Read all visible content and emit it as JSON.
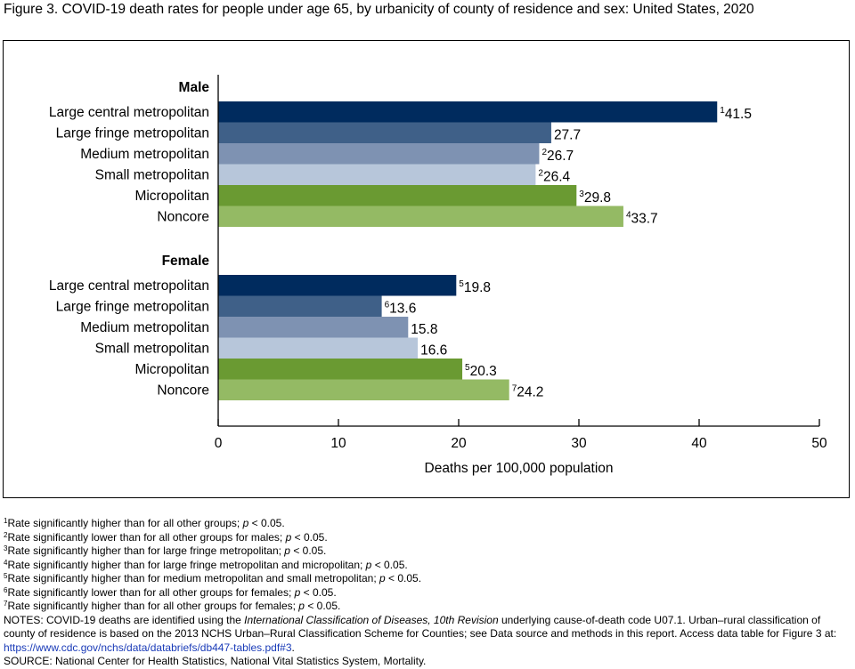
{
  "figure": {
    "title": "Figure 3. COVID-19 death rates for people under age 65, by urbanicity of county of residence and sex: United States, 2020"
  },
  "chart_data": {
    "type": "bar",
    "orientation": "horizontal",
    "xlabel": "Deaths per 100,000 population",
    "xlim": [
      0,
      50
    ],
    "xticks": [
      "0",
      "10",
      "20",
      "30",
      "40",
      "50"
    ],
    "grid": false,
    "colors": {
      "Large central metropolitan": "#002b5e",
      "Large fringe metropolitan": "#3f6088",
      "Medium metropolitan": "#7e92b2",
      "Small metropolitan": "#b7c6da",
      "Micropolitan": "#6a9a32",
      "Noncore": "#94ba64"
    },
    "groups": [
      {
        "name": "Male",
        "bars": [
          {
            "category": "Large central metropolitan",
            "value": 41.5,
            "label": "41.5",
            "note": "1"
          },
          {
            "category": "Large fringe metropolitan",
            "value": 27.7,
            "label": "27.7",
            "note": ""
          },
          {
            "category": "Medium metropolitan",
            "value": 26.7,
            "label": "26.7",
            "note": "2"
          },
          {
            "category": "Small metropolitan",
            "value": 26.4,
            "label": "26.4",
            "note": "2"
          },
          {
            "category": "Micropolitan",
            "value": 29.8,
            "label": "29.8",
            "note": "3"
          },
          {
            "category": "Noncore",
            "value": 33.7,
            "label": "33.7",
            "note": "4"
          }
        ]
      },
      {
        "name": "Female",
        "bars": [
          {
            "category": "Large central metropolitan",
            "value": 19.8,
            "label": "19.8",
            "note": "5"
          },
          {
            "category": "Large fringe metropolitan",
            "value": 13.6,
            "label": "13.6",
            "note": "6"
          },
          {
            "category": "Medium metropolitan",
            "value": 15.8,
            "label": "15.8",
            "note": ""
          },
          {
            "category": "Small metropolitan",
            "value": 16.6,
            "label": "16.6",
            "note": ""
          },
          {
            "category": "Micropolitan",
            "value": 20.3,
            "label": "20.3",
            "note": "5"
          },
          {
            "category": "Noncore",
            "value": 24.2,
            "label": "24.2",
            "note": "7"
          }
        ]
      }
    ]
  },
  "footnotes": [
    {
      "mark": "1",
      "before": "Rate significantly higher than for all other groups; ",
      "p": "p",
      "after": " < 0.05."
    },
    {
      "mark": "2",
      "before": "Rate significantly lower than for all other groups for males; ",
      "p": "p",
      "after": " < 0.05."
    },
    {
      "mark": "3",
      "before": "Rate significantly higher than for large fringe metropolitan; ",
      "p": "p",
      "after": " < 0.05."
    },
    {
      "mark": "4",
      "before": "Rate significantly higher than for large fringe metropolitan and micropolitan; ",
      "p": "p",
      "after": " < 0.05."
    },
    {
      "mark": "5",
      "before": "Rate significantly higher than for medium metropolitan and small metropolitan; ",
      "p": "p",
      "after": " < 0.05."
    },
    {
      "mark": "6",
      "before": "Rate significantly lower than for all other groups for females; ",
      "p": "p",
      "after": " < 0.05."
    },
    {
      "mark": "7",
      "before": "Rate significantly higher than for all other groups for females; ",
      "p": "p",
      "after": " < 0.05."
    }
  ],
  "notes": {
    "part1": "NOTES: COVID-19 deaths are identified using the ",
    "italic": "International Classification of Diseases, 10th Revision",
    "part2": " underlying cause-of-death code U07.1. Urban–rural classification of county of residence is based on the 2013 NCHS Urban–Rural Classification Scheme for Counties; see Data source and methods in this report. Access data table for Figure 3 at: ",
    "link": "https://www.cdc.gov/nchs/data/databriefs/db447-tables.pdf#3",
    "part3": "."
  },
  "source": "SOURCE: National Center for Health Statistics, National Vital Statistics System, Mortality."
}
